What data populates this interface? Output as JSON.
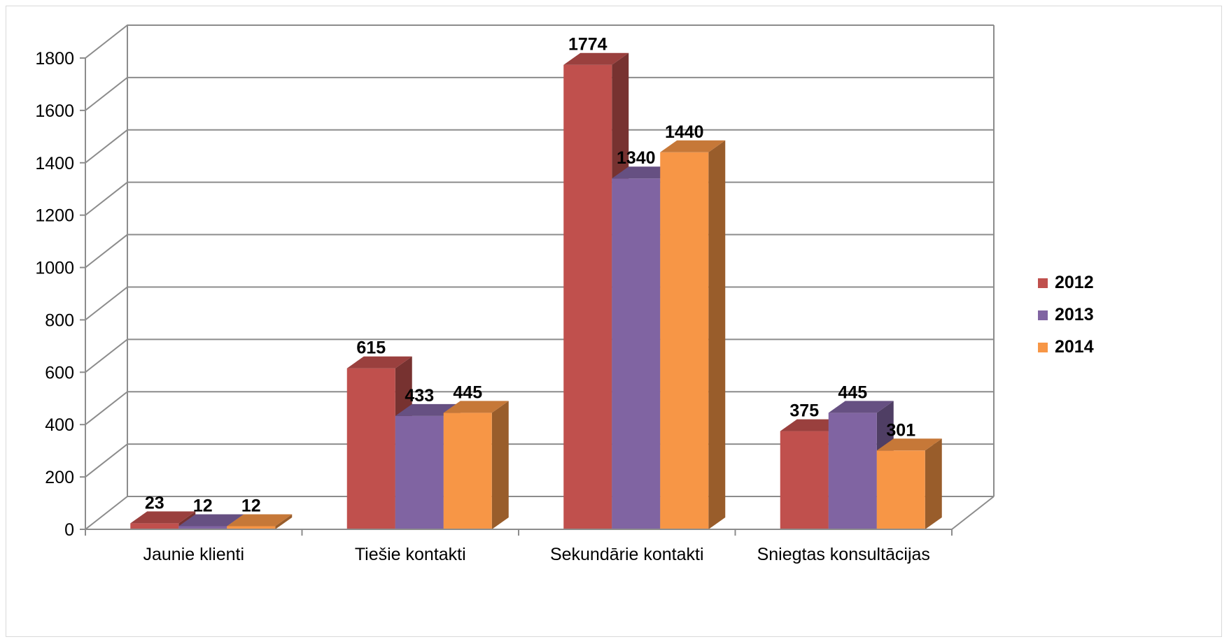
{
  "chart_data": {
    "type": "bar",
    "style": "3d-clustered-column",
    "categories": [
      "Jaunie klienti",
      "Tiešie kontakti",
      "Sekundārie kontakti",
      "Sniegtas konsultācijas"
    ],
    "series": [
      {
        "name": "2012",
        "values": [
          23,
          615,
          1774,
          375
        ],
        "color": "#C0504D"
      },
      {
        "name": "2013",
        "values": [
          12,
          433,
          1340,
          445
        ],
        "color": "#8064A2"
      },
      {
        "name": "2014",
        "values": [
          12,
          445,
          1440,
          301
        ],
        "color": "#F79646"
      }
    ],
    "ylim": [
      0,
      1800
    ],
    "yticks": [
      0,
      200,
      400,
      600,
      800,
      1000,
      1200,
      1400,
      1600,
      1800
    ],
    "grid": true,
    "legend": "right",
    "data_labels": true
  }
}
